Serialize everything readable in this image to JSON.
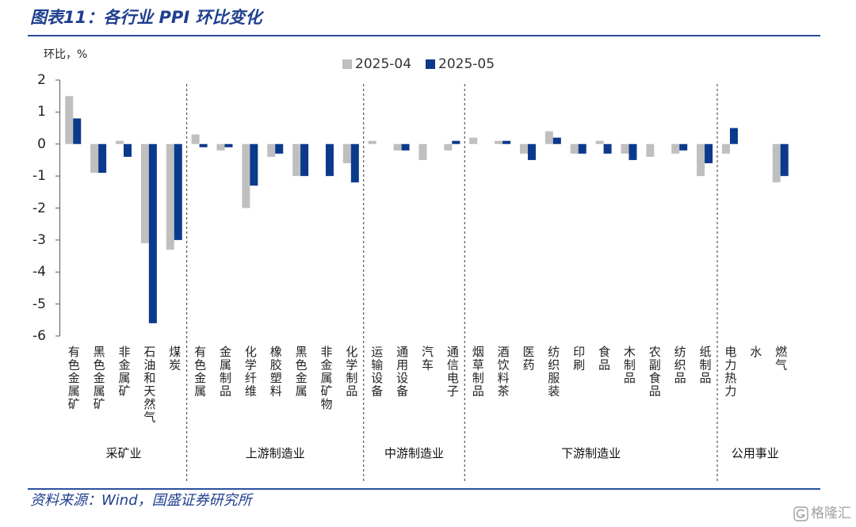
{
  "theme": {
    "accent": "#1f3f8f",
    "rule": "#2a4f9c"
  },
  "chart_data": {
    "type": "bar",
    "title": "图表11：各行业 PPI 环比变化",
    "ylabel": "环比，%",
    "ylim": [
      -6,
      2
    ],
    "yticks": [
      2,
      1,
      0,
      -1,
      -2,
      -3,
      -4,
      -5,
      -6
    ],
    "grid": false,
    "legend_position": "top-center",
    "categories": [
      "有色金属矿",
      "黑色金属矿",
      "非金属矿",
      "石油和天然气",
      "煤炭",
      "有色金属",
      "金属制品",
      "化学纤维",
      "橡胶塑料",
      "黑色金属",
      "非金属矿物",
      "化学制品",
      "运输设备",
      "通用设备",
      "汽车",
      "通信电子",
      "烟草制品",
      "酒饮料茶",
      "医药",
      "纺织服装",
      "印刷",
      "食品",
      "木制品",
      "农副食品",
      "纺织品",
      "纸制品",
      "电力热力",
      "水",
      "燃气"
    ],
    "series": [
      {
        "name": "2025-04",
        "color": "#bfbfbf",
        "values": [
          1.5,
          -0.9,
          0.1,
          -3.1,
          -3.3,
          0.3,
          -0.2,
          -2.0,
          -0.4,
          -1.0,
          0.0,
          -0.6,
          0.1,
          -0.2,
          -0.5,
          -0.2,
          0.2,
          0.1,
          -0.3,
          0.4,
          -0.3,
          0.1,
          -0.3,
          -0.4,
          -0.3,
          -1.0,
          -0.3,
          0.0,
          -1.2
        ]
      },
      {
        "name": "2025-05",
        "color": "#0b3a8c",
        "values": [
          0.8,
          -0.9,
          -0.4,
          -5.6,
          -3.0,
          -0.1,
          -0.1,
          -1.3,
          -0.3,
          -1.0,
          -1.0,
          -1.2,
          0.0,
          -0.2,
          0.0,
          0.1,
          0.0,
          0.1,
          -0.5,
          0.2,
          -0.3,
          -0.3,
          -0.5,
          0.0,
          -0.2,
          -0.6,
          0.5,
          0.0,
          -1.0
        ]
      }
    ],
    "groups": [
      {
        "label": "采矿业",
        "start": 0,
        "end": 4
      },
      {
        "label": "上游制造业",
        "start": 5,
        "end": 11
      },
      {
        "label": "中游制造业",
        "start": 12,
        "end": 15
      },
      {
        "label": "下游制造业",
        "start": 16,
        "end": 25
      },
      {
        "label": "公用事业",
        "start": 26,
        "end": 28
      }
    ]
  },
  "source": "资料来源：Wind，国盛证券研究所",
  "watermark": {
    "text": "格隆汇",
    "icon": "gelonghui-logo-icon"
  }
}
